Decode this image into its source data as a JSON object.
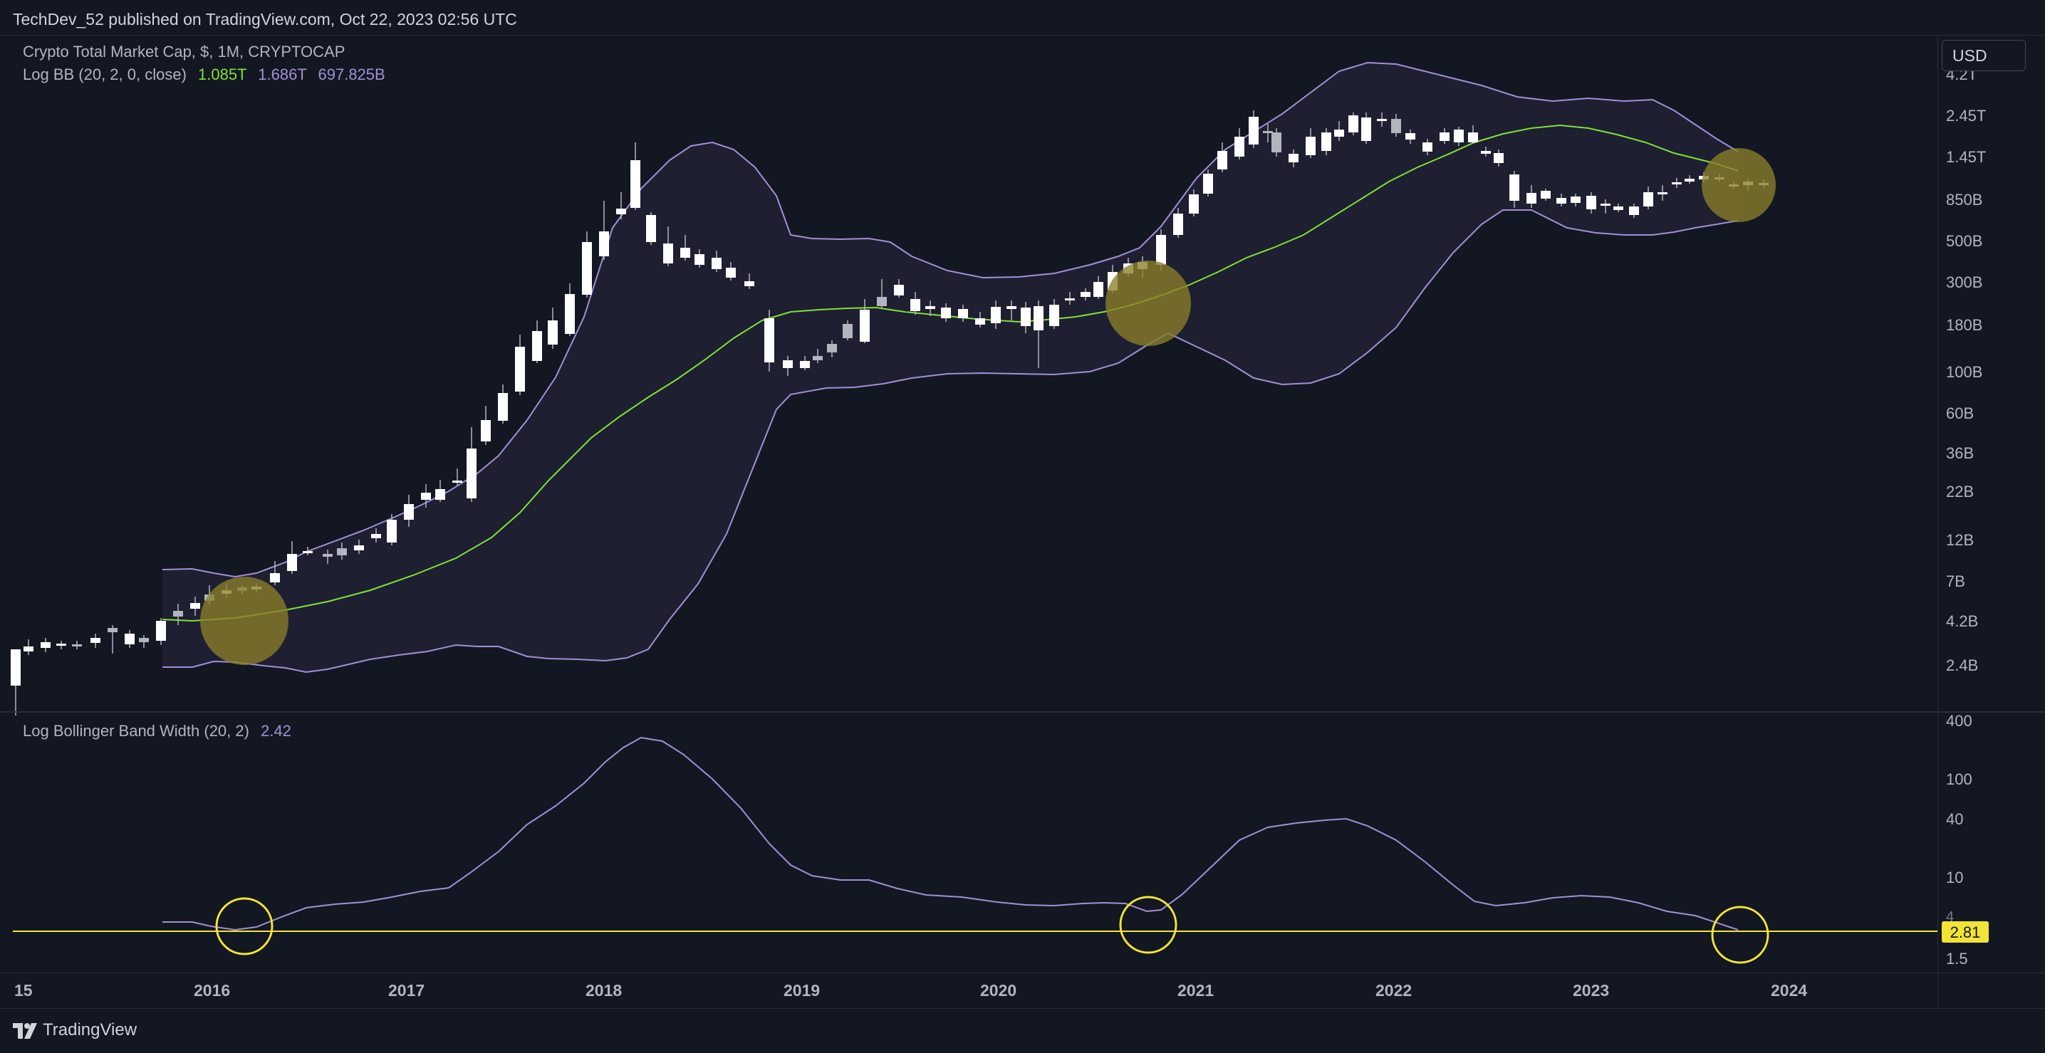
{
  "header": {
    "published": "TechDev_52 published on TradingView.com, Oct 22, 2023 02:56 UTC"
  },
  "legend": {
    "symbol": "Crypto Total Market Cap, $, 1M, CRYPTOCAP",
    "bb_label": "Log BB (20, 2, 0, close)",
    "bb_basis": "1.085T",
    "bb_upper": "1.686T",
    "bb_lower": "697.825B",
    "bw_label": "Log Bollinger Band Width (20, 2)",
    "bw_value": "2.42"
  },
  "currency_button": "USD",
  "footer": {
    "brand": "TradingView"
  },
  "colors": {
    "background": "#131722",
    "basis": "#7fe234",
    "band": "#a38fd6",
    "band_fill": "#1f2033",
    "candle_up": "#e0e3eb",
    "candle_down": "#ffffff",
    "highlight": "#8a7f2a",
    "threshold": "#f2e436"
  },
  "chart_data": [
    {
      "type": "candlestick",
      "title": "Crypto Total Market Cap, $, 1M, CRYPTOCAP",
      "y_scale": "log",
      "y_ticks": [
        "4.2T",
        "2.45T",
        "1.45T",
        "850B",
        "500B",
        "300B",
        "180B",
        "100B",
        "60B",
        "36B",
        "22B",
        "12B",
        "7B",
        "4.2B",
        "2.4B"
      ],
      "x_ticks": [
        "15",
        "2016",
        "2017",
        "2018",
        "2019",
        "2020",
        "2021",
        "2022",
        "2023",
        "2024"
      ],
      "series": [
        {
          "name": "Log BB (20, 2, 0, close)",
          "basis": "1.085T",
          "upper": "1.686T",
          "lower": "697.825B"
        }
      ],
      "annotations": [
        {
          "shape": "circle",
          "x": "2016-03",
          "y": "4.2B"
        },
        {
          "shape": "circle",
          "x": "2020-10",
          "y": "260B"
        },
        {
          "shape": "circle",
          "x": "2023-10",
          "y": "1.1T"
        }
      ]
    },
    {
      "type": "line",
      "title": "Log Bollinger Band Width (20, 2)",
      "y_scale": "log",
      "y_ticks": [
        "400",
        "100",
        "40",
        "10",
        "4",
        "1.5"
      ],
      "last_value": "2.42",
      "threshold": {
        "value": 2.81,
        "label": "2.81"
      },
      "annotations": [
        {
          "shape": "circle",
          "x": "2016-03"
        },
        {
          "shape": "circle",
          "x": "2020-10"
        },
        {
          "shape": "circle",
          "x": "2023-10"
        }
      ]
    }
  ]
}
